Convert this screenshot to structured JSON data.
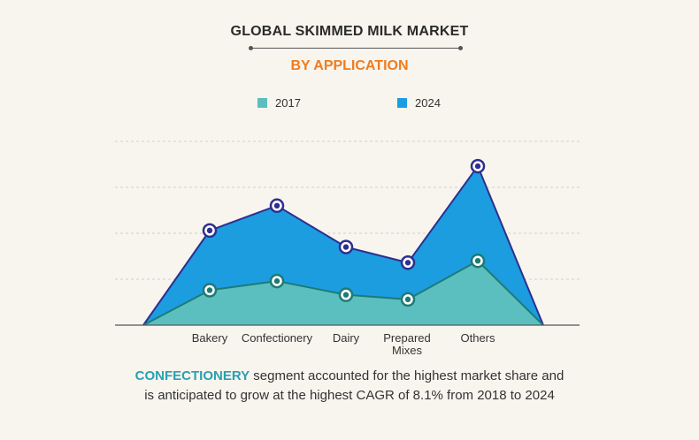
{
  "header": {
    "title": "GLOBAL SKIMMED MILK MARKET",
    "subtitle": "BY APPLICATION"
  },
  "caption": {
    "highlight": "CONFECTIONERY",
    "line1_rest": " segment accounted for the highest market share and",
    "line2": "is anticipated to grow at the highest CAGR of 8.1% from 2018 to 2024"
  },
  "colors": {
    "subtitle": "#f07c1e",
    "highlight": "#2a9fb2",
    "series_2017_fill": "#5bbfbf",
    "series_2017_line": "#1f7a74",
    "series_2024_fill": "#1b9de0",
    "series_2024_line": "#2e2f8f",
    "grid": "#cfcfcf",
    "axis": "#555555"
  },
  "chart_data": {
    "type": "area",
    "categories": [
      "Bakery",
      "Confectionery",
      "Dairy",
      "Prepared Mixes",
      "Others"
    ],
    "category_label_lines": [
      [
        "Bakery"
      ],
      [
        "Confectionery"
      ],
      [
        "Dairy"
      ],
      [
        "Prepared",
        "Mixes"
      ],
      [
        "Others"
      ]
    ],
    "series": [
      {
        "name": "2017",
        "values": [
          38,
          48,
          33,
          28,
          70
        ]
      },
      {
        "name": "2024",
        "values": [
          103,
          130,
          85,
          68,
          173
        ]
      }
    ],
    "ylim": [
      0,
      200
    ],
    "grid": true,
    "gridlines": 4,
    "legend_position": "top-center",
    "title": "GLOBAL SKIMMED MILK MARKET",
    "subtitle": "BY APPLICATION",
    "xlabel": "",
    "ylabel": ""
  }
}
